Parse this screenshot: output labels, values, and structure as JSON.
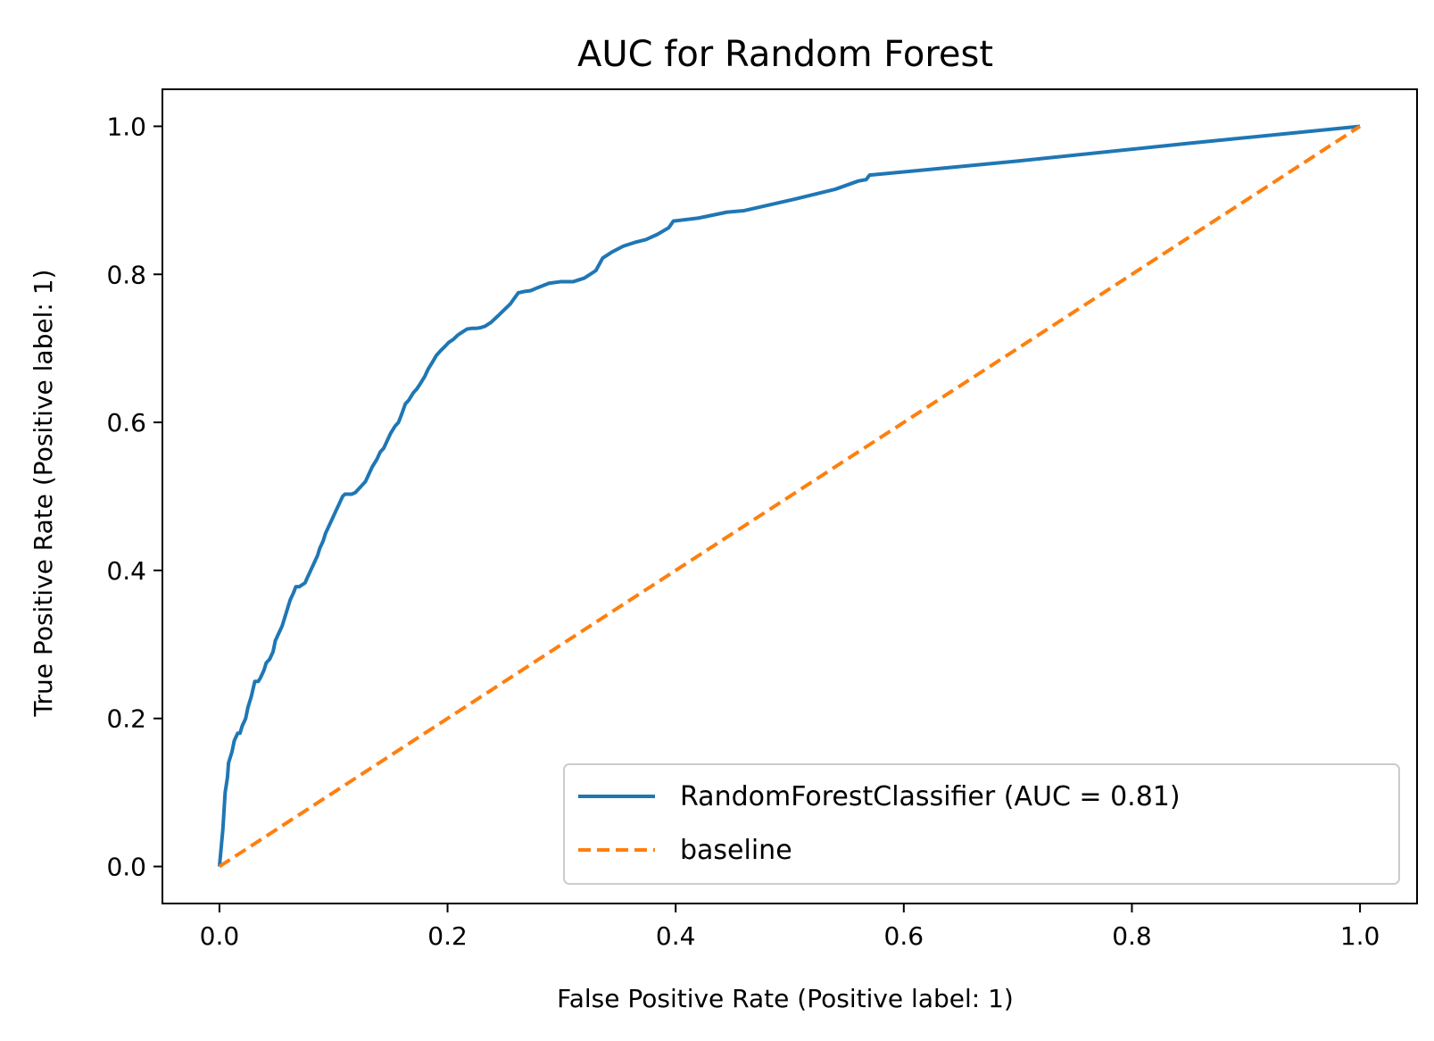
{
  "chart_data": {
    "type": "line",
    "title": "AUC for Random Forest",
    "xlabel": "False Positive Rate (Positive label: 1)",
    "ylabel": "True Positive Rate (Positive label: 1)",
    "xlim": [
      -0.05,
      1.05
    ],
    "ylim": [
      -0.05,
      1.05
    ],
    "xticks": [
      0.0,
      0.2,
      0.4,
      0.6,
      0.8,
      1.0
    ],
    "yticks": [
      0.0,
      0.2,
      0.4,
      0.6,
      0.8,
      1.0
    ],
    "xtick_labels": [
      "0.0",
      "0.2",
      "0.4",
      "0.6",
      "0.8",
      "1.0"
    ],
    "ytick_labels": [
      "0.0",
      "0.2",
      "0.4",
      "0.6",
      "0.8",
      "1.0"
    ],
    "grid": false,
    "legend_position": "lower-right",
    "series": [
      {
        "name": "RandomForestClassifier (AUC = 0.81)",
        "color": "#1f77b4",
        "style": "solid",
        "x": [
          0.0,
          0.003,
          0.005,
          0.007,
          0.008,
          0.011,
          0.013,
          0.016,
          0.018,
          0.02,
          0.023,
          0.025,
          0.028,
          0.031,
          0.034,
          0.036,
          0.039,
          0.041,
          0.044,
          0.047,
          0.049,
          0.052,
          0.055,
          0.057,
          0.06,
          0.062,
          0.065,
          0.067,
          0.07,
          0.072,
          0.075,
          0.077,
          0.08,
          0.083,
          0.086,
          0.088,
          0.091,
          0.093,
          0.096,
          0.099,
          0.102,
          0.105,
          0.108,
          0.11,
          0.113,
          0.116,
          0.119,
          0.122,
          0.125,
          0.128,
          0.131,
          0.134,
          0.138,
          0.141,
          0.144,
          0.147,
          0.15,
          0.154,
          0.157,
          0.16,
          0.163,
          0.166,
          0.17,
          0.173,
          0.176,
          0.18,
          0.183,
          0.187,
          0.19,
          0.194,
          0.198,
          0.201,
          0.205,
          0.209,
          0.213,
          0.217,
          0.221,
          0.225,
          0.229,
          0.233,
          0.238,
          0.245,
          0.255,
          0.262,
          0.268,
          0.273,
          0.279,
          0.289,
          0.299,
          0.31,
          0.32,
          0.33,
          0.336,
          0.344,
          0.354,
          0.364,
          0.374,
          0.384,
          0.394,
          0.398,
          0.42,
          0.445,
          0.46,
          0.5,
          0.54,
          0.56,
          0.567,
          0.57,
          0.7,
          0.85,
          1.0
        ],
        "y": [
          0.0,
          0.05,
          0.1,
          0.12,
          0.14,
          0.155,
          0.17,
          0.18,
          0.18,
          0.19,
          0.2,
          0.215,
          0.23,
          0.25,
          0.25,
          0.255,
          0.265,
          0.275,
          0.28,
          0.29,
          0.305,
          0.315,
          0.325,
          0.335,
          0.35,
          0.36,
          0.37,
          0.378,
          0.378,
          0.38,
          0.383,
          0.39,
          0.4,
          0.41,
          0.42,
          0.43,
          0.44,
          0.45,
          0.46,
          0.47,
          0.48,
          0.49,
          0.5,
          0.503,
          0.503,
          0.503,
          0.505,
          0.51,
          0.515,
          0.52,
          0.53,
          0.54,
          0.55,
          0.56,
          0.565,
          0.575,
          0.585,
          0.595,
          0.6,
          0.612,
          0.625,
          0.63,
          0.64,
          0.645,
          0.652,
          0.662,
          0.672,
          0.682,
          0.69,
          0.697,
          0.703,
          0.708,
          0.712,
          0.718,
          0.722,
          0.726,
          0.727,
          0.727,
          0.728,
          0.73,
          0.735,
          0.745,
          0.76,
          0.775,
          0.777,
          0.778,
          0.782,
          0.788,
          0.79,
          0.79,
          0.795,
          0.805,
          0.822,
          0.83,
          0.838,
          0.843,
          0.847,
          0.854,
          0.863,
          0.872,
          0.876,
          0.884,
          0.886,
          0.9,
          0.915,
          0.926,
          0.928,
          0.934,
          0.953,
          0.977,
          1.0
        ]
      },
      {
        "name": "baseline",
        "color": "#ff7f0e",
        "style": "dashed",
        "x": [
          0.0,
          1.0
        ],
        "y": [
          0.0,
          1.0
        ]
      }
    ]
  }
}
